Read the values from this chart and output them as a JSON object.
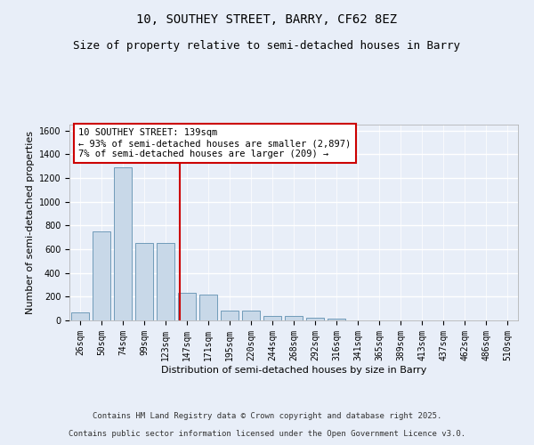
{
  "title_line1": "10, SOUTHEY STREET, BARRY, CF62 8EZ",
  "title_line2": "Size of property relative to semi-detached houses in Barry",
  "xlabel": "Distribution of semi-detached houses by size in Barry",
  "ylabel": "Number of semi-detached properties",
  "categories": [
    "26sqm",
    "50sqm",
    "74sqm",
    "99sqm",
    "123sqm",
    "147sqm",
    "171sqm",
    "195sqm",
    "220sqm",
    "244sqm",
    "268sqm",
    "292sqm",
    "316sqm",
    "341sqm",
    "365sqm",
    "389sqm",
    "413sqm",
    "437sqm",
    "462sqm",
    "486sqm",
    "510sqm"
  ],
  "values": [
    65,
    750,
    1290,
    650,
    650,
    230,
    220,
    85,
    80,
    40,
    35,
    20,
    15,
    0,
    0,
    0,
    0,
    0,
    0,
    0,
    0
  ],
  "bar_color": "#c8d8e8",
  "bar_edge_color": "#6090b0",
  "vline_x_index": 4.67,
  "vline_color": "#cc0000",
  "annotation_text": "10 SOUTHEY STREET: 139sqm\n← 93% of semi-detached houses are smaller (2,897)\n7% of semi-detached houses are larger (209) →",
  "annotation_box_color": "#ffffff",
  "annotation_box_edge": "#cc0000",
  "ylim": [
    0,
    1650
  ],
  "yticks": [
    0,
    200,
    400,
    600,
    800,
    1000,
    1200,
    1400,
    1600
  ],
  "background_color": "#e8eef8",
  "grid_color": "#ffffff",
  "footer_line1": "Contains HM Land Registry data © Crown copyright and database right 2025.",
  "footer_line2": "Contains public sector information licensed under the Open Government Licence v3.0.",
  "title_fontsize": 10,
  "subtitle_fontsize": 9,
  "axis_label_fontsize": 8,
  "tick_fontsize": 7,
  "annotation_fontsize": 7.5,
  "footer_fontsize": 6.5
}
